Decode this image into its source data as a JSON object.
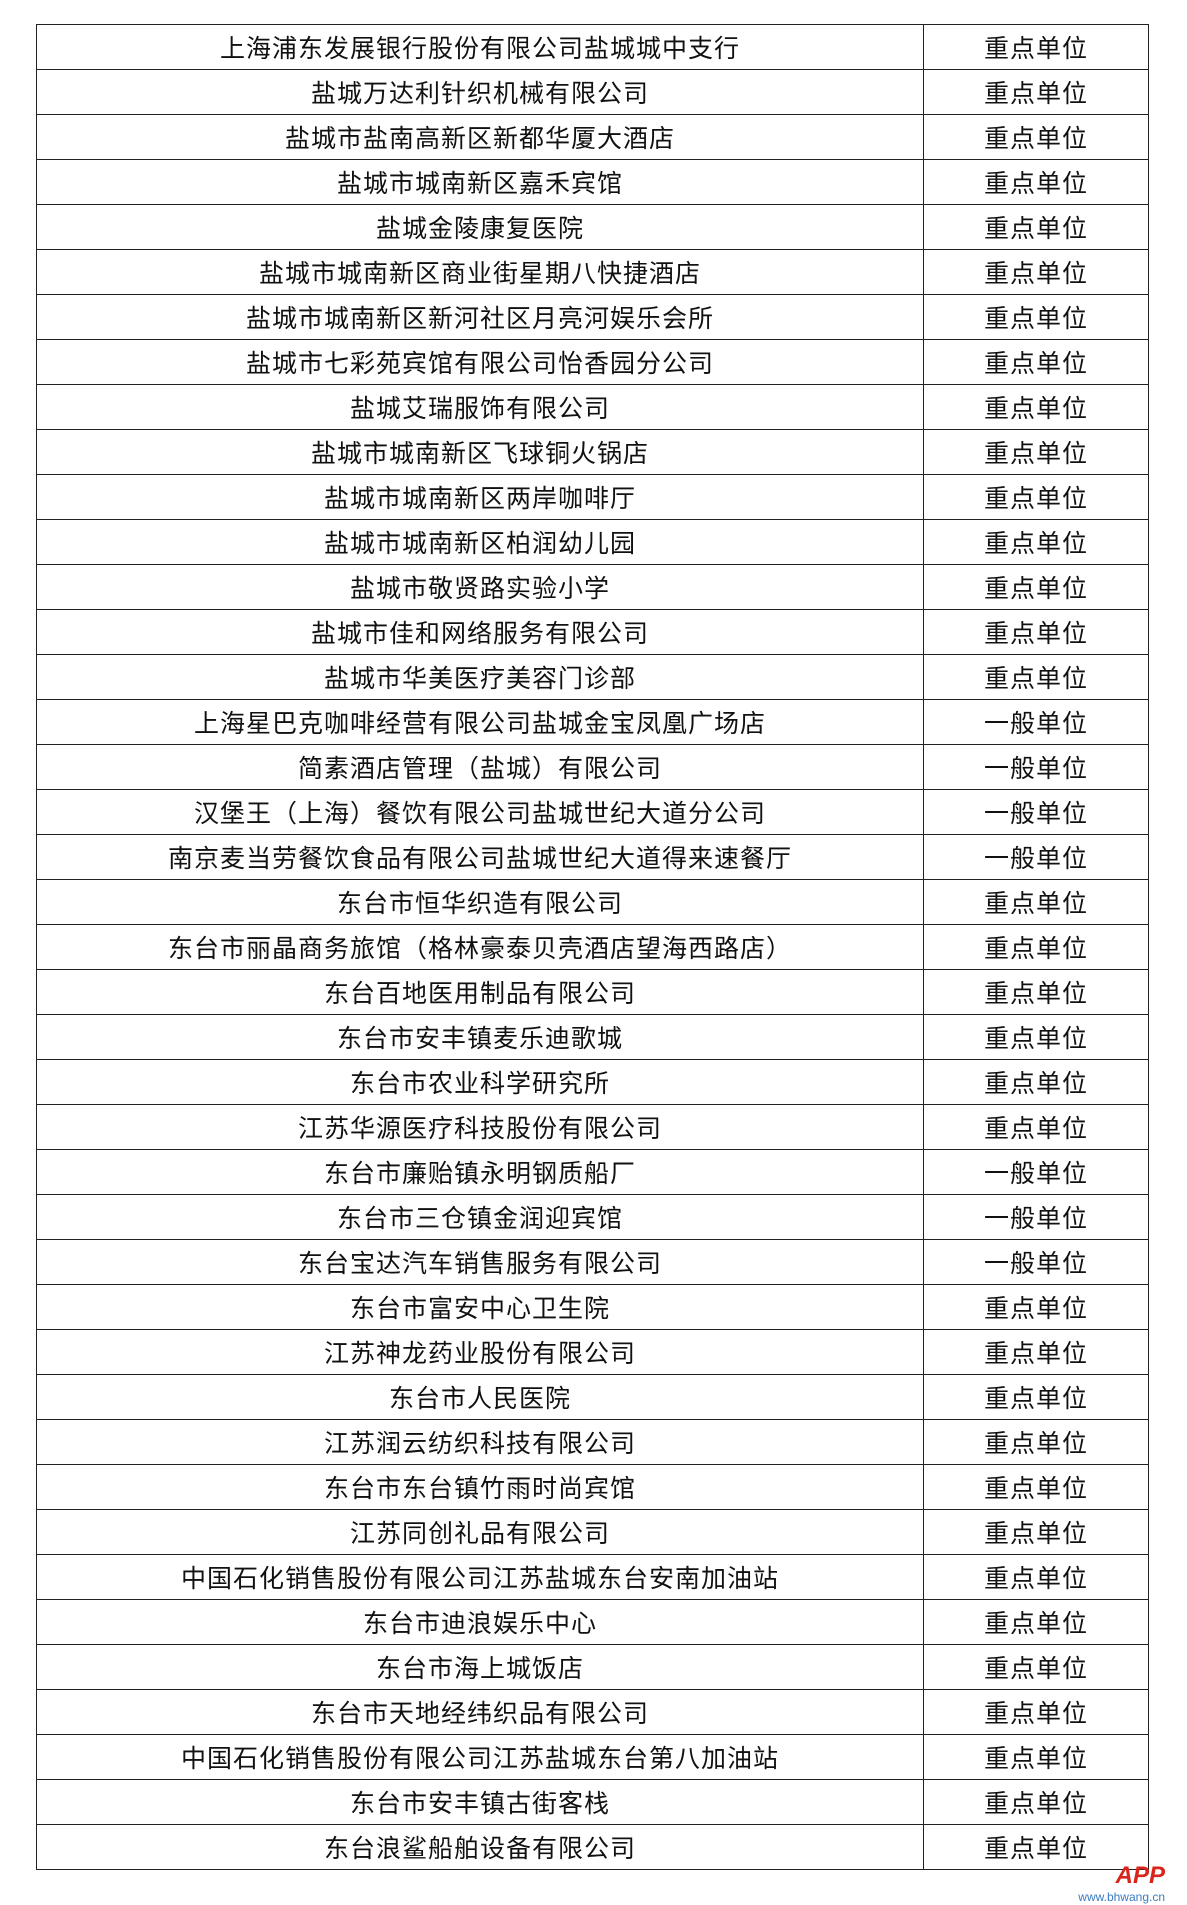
{
  "table": {
    "rows": [
      [
        "上海浦东发展银行股份有限公司盐城城中支行",
        "重点单位"
      ],
      [
        "盐城万达利针织机械有限公司",
        "重点单位"
      ],
      [
        "盐城市盐南高新区新都华厦大酒店",
        "重点单位"
      ],
      [
        "盐城市城南新区嘉禾宾馆",
        "重点单位"
      ],
      [
        "盐城金陵康复医院",
        "重点单位"
      ],
      [
        "盐城市城南新区商业街星期八快捷酒店",
        "重点单位"
      ],
      [
        "盐城市城南新区新河社区月亮河娱乐会所",
        "重点单位"
      ],
      [
        "盐城市七彩苑宾馆有限公司怡香园分公司",
        "重点单位"
      ],
      [
        "盐城艾瑞服饰有限公司",
        "重点单位"
      ],
      [
        "盐城市城南新区飞球铜火锅店",
        "重点单位"
      ],
      [
        "盐城市城南新区两岸咖啡厅",
        "重点单位"
      ],
      [
        "盐城市城南新区柏润幼儿园",
        "重点单位"
      ],
      [
        "盐城市敬贤路实验小学",
        "重点单位"
      ],
      [
        "盐城市佳和网络服务有限公司",
        "重点单位"
      ],
      [
        "盐城市华美医疗美容门诊部",
        "重点单位"
      ],
      [
        "上海星巴克咖啡经营有限公司盐城金宝凤凰广场店",
        "一般单位"
      ],
      [
        "简素酒店管理（盐城）有限公司",
        "一般单位"
      ],
      [
        "汉堡王（上海）餐饮有限公司盐城世纪大道分公司",
        "一般单位"
      ],
      [
        "南京麦当劳餐饮食品有限公司盐城世纪大道得来速餐厅",
        "一般单位"
      ],
      [
        "东台市恒华织造有限公司",
        "重点单位"
      ],
      [
        "东台市丽晶商务旅馆（格林豪泰贝壳酒店望海西路店）",
        "重点单位"
      ],
      [
        "东台百地医用制品有限公司",
        "重点单位"
      ],
      [
        "东台市安丰镇麦乐迪歌城",
        "重点单位"
      ],
      [
        "东台市农业科学研究所",
        "重点单位"
      ],
      [
        "江苏华源医疗科技股份有限公司",
        "重点单位"
      ],
      [
        "东台市廉贻镇永明钢质船厂",
        "一般单位"
      ],
      [
        "东台市三仓镇金润迎宾馆",
        "一般单位"
      ],
      [
        "东台宝达汽车销售服务有限公司",
        "一般单位"
      ],
      [
        "东台市富安中心卫生院",
        "重点单位"
      ],
      [
        "江苏神龙药业股份有限公司",
        "重点单位"
      ],
      [
        "东台市人民医院",
        "重点单位"
      ],
      [
        "江苏润云纺织科技有限公司",
        "重点单位"
      ],
      [
        "东台市东台镇竹雨时尚宾馆",
        "重点单位"
      ],
      [
        "江苏同创礼品有限公司",
        "重点单位"
      ],
      [
        "中国石化销售股份有限公司江苏盐城东台安南加油站",
        "重点单位"
      ],
      [
        "东台市迪浪娱乐中心",
        "重点单位"
      ],
      [
        "东台市海上城饭店",
        "重点单位"
      ],
      [
        "东台市天地经纬织品有限公司",
        "重点单位"
      ],
      [
        "中国石化销售股份有限公司江苏盐城东台第八加油站",
        "重点单位"
      ],
      [
        "东台市安丰镇古街客栈",
        "重点单位"
      ],
      [
        "东台浪鲨船舶设备有限公司",
        "重点单位"
      ]
    ]
  },
  "watermark": {
    "brand": "APP",
    "url": "www.bhwang.cn"
  }
}
